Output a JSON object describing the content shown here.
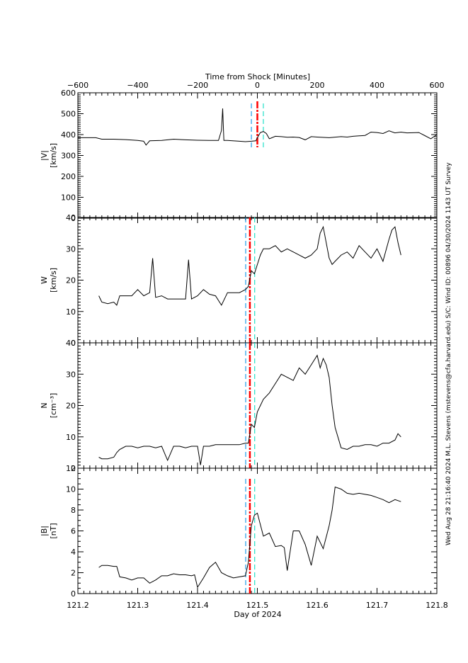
{
  "colors": {
    "background": "#ffffff",
    "axis": "#000000",
    "data_line": "#000000",
    "shock_line": "#ff0000",
    "upstream_line": "#1e9be8",
    "downstream_line": "#20e0c8"
  },
  "top_axis": {
    "title": "Time from Shock [Minutes]",
    "ticks": [
      "-600",
      "-400",
      "-200",
      "0",
      "200",
      "400",
      "600"
    ],
    "range": [
      -600,
      600
    ]
  },
  "bottom_axis": {
    "title": "Day of 2024",
    "ticks": [
      "121.2",
      "121.3",
      "121.4",
      "121.5",
      "121.6",
      "121.7",
      "121.8"
    ],
    "range": [
      121.2,
      121.8
    ]
  },
  "side_annotation": "Wed Aug 28 21:16:40 2024   M.L. Stevens (mstevens@cfa.harvard.edu)   S/C: Wind ID: 00896 04/30/2024   1143 UT Survey",
  "chart_data": [
    {
      "type": "line",
      "title": "|V|",
      "ylabel": "|V| [km/s]",
      "xlabel": "Time from Shock [Minutes]",
      "xlim": [
        -600,
        600
      ],
      "ylim": [
        0,
        600
      ],
      "yticks": [
        "0",
        "100",
        "200",
        "300",
        "400",
        "500",
        "600"
      ],
      "shock_marker_x": 0,
      "upstream_marker_x": -20,
      "downstream_marker_x": 20,
      "x": [
        -600,
        -540,
        -520,
        -480,
        -440,
        -400,
        -380,
        -372,
        -360,
        -320,
        -280,
        -240,
        -200,
        -160,
        -130,
        -120,
        -116,
        -112,
        -100,
        -60,
        -40,
        -20,
        -5,
        0,
        10,
        20,
        30,
        40,
        60,
        80,
        100,
        120,
        140,
        160,
        180,
        200,
        240,
        280,
        300,
        320,
        360,
        380,
        400,
        420,
        440,
        460,
        480,
        500,
        540,
        560,
        580,
        600
      ],
      "y": [
        385,
        385,
        378,
        378,
        376,
        372,
        368,
        350,
        370,
        372,
        378,
        375,
        373,
        372,
        372,
        420,
        525,
        372,
        372,
        368,
        366,
        368,
        370,
        385,
        410,
        415,
        405,
        380,
        392,
        390,
        387,
        388,
        386,
        375,
        390,
        388,
        385,
        390,
        388,
        392,
        396,
        412,
        410,
        405,
        418,
        408,
        412,
        408,
        410,
        395,
        380,
        400
      ]
    },
    {
      "type": "line",
      "title": "W",
      "ylabel": "W_i [km/s]",
      "xlabel": "Day of 2024",
      "xlim": [
        121.2,
        121.8
      ],
      "ylim": [
        0,
        40
      ],
      "yticks": [
        "0",
        "10",
        "20",
        "30",
        "40"
      ],
      "shock_marker_x": 121.4875,
      "upstream_marker_x": 121.4805,
      "downstream_marker_x": 121.4955,
      "x": [
        121.235,
        121.24,
        121.25,
        121.26,
        121.265,
        121.27,
        121.28,
        121.29,
        121.3,
        121.31,
        121.32,
        121.325,
        121.33,
        121.34,
        121.35,
        121.36,
        121.37,
        121.38,
        121.385,
        121.39,
        121.4,
        121.41,
        121.42,
        121.43,
        121.44,
        121.45,
        121.46,
        121.47,
        121.48,
        121.485,
        121.49,
        121.495,
        121.5,
        121.505,
        121.51,
        121.52,
        121.53,
        121.54,
        121.55,
        121.56,
        121.57,
        121.58,
        121.59,
        121.6,
        121.605,
        121.61,
        121.62,
        121.625,
        121.63,
        121.64,
        121.65,
        121.66,
        121.67,
        121.68,
        121.69,
        121.7,
        121.71,
        121.72,
        121.725,
        121.73,
        121.735,
        121.74
      ],
      "y": [
        15,
        13,
        12.5,
        13,
        12,
        15,
        15,
        15,
        17,
        15,
        16,
        27,
        14.5,
        15,
        14,
        14,
        14,
        14,
        26.5,
        14,
        15,
        17,
        15.5,
        15,
        12,
        16,
        16,
        16,
        17,
        18,
        23,
        22,
        25,
        28,
        30,
        30,
        31,
        29,
        30,
        29,
        28,
        27,
        28,
        30,
        35,
        37,
        27,
        25,
        26,
        28,
        29,
        27,
        31,
        29,
        27,
        30,
        26,
        33,
        36,
        37,
        32,
        28
      ]
    },
    {
      "type": "line",
      "title": "N_i",
      "ylabel": "N_i [cm^-3]",
      "xlabel": "Day of 2024",
      "xlim": [
        121.2,
        121.8
      ],
      "ylim": [
        0,
        40
      ],
      "yticks": [
        "0",
        "10",
        "20",
        "30",
        "40"
      ],
      "shock_marker_x": 121.4875,
      "upstream_marker_x": 121.4805,
      "downstream_marker_x": 121.4955,
      "x": [
        121.235,
        121.24,
        121.25,
        121.26,
        121.265,
        121.27,
        121.28,
        121.29,
        121.3,
        121.31,
        121.32,
        121.33,
        121.34,
        121.35,
        121.36,
        121.365,
        121.37,
        121.38,
        121.39,
        121.4,
        121.405,
        121.41,
        121.42,
        121.43,
        121.44,
        121.45,
        121.46,
        121.47,
        121.48,
        121.485,
        121.49,
        121.495,
        121.5,
        121.51,
        121.52,
        121.53,
        121.54,
        121.55,
        121.56,
        121.57,
        121.58,
        121.59,
        121.6,
        121.605,
        121.61,
        121.615,
        121.62,
        121.625,
        121.63,
        121.64,
        121.65,
        121.66,
        121.67,
        121.68,
        121.69,
        121.7,
        121.71,
        121.72,
        121.73,
        121.735,
        121.74
      ],
      "y": [
        3.5,
        3,
        3,
        3.5,
        5,
        6,
        7,
        7,
        6.5,
        7,
        7,
        6.5,
        7,
        2.5,
        7,
        7,
        7,
        6.5,
        7,
        7,
        1,
        7,
        7,
        7.5,
        7.5,
        7.5,
        7.5,
        7.5,
        8,
        8,
        14,
        13,
        18,
        22,
        24,
        27,
        30,
        29,
        28,
        32,
        30,
        33,
        36,
        32,
        35,
        33,
        29,
        20,
        13,
        6.5,
        6,
        7,
        7,
        7.5,
        7.5,
        7,
        8,
        8,
        9,
        11,
        10
      ]
    },
    {
      "type": "line",
      "title": "|B|",
      "ylabel": "|B| [nT]",
      "xlabel": "Day of 2024",
      "xlim": [
        121.2,
        121.8
      ],
      "ylim": [
        0,
        12
      ],
      "yticks": [
        "0",
        "2",
        "4",
        "6",
        "8",
        "10",
        "12"
      ],
      "shock_marker_x": 121.4875,
      "upstream_marker_x": 121.4805,
      "downstream_marker_x": 121.4955,
      "x": [
        121.235,
        121.24,
        121.25,
        121.26,
        121.265,
        121.27,
        121.28,
        121.29,
        121.3,
        121.31,
        121.32,
        121.33,
        121.34,
        121.35,
        121.36,
        121.37,
        121.38,
        121.39,
        121.395,
        121.4,
        121.41,
        121.42,
        121.43,
        121.44,
        121.45,
        121.46,
        121.47,
        121.48,
        121.485,
        121.49,
        121.495,
        121.5,
        121.51,
        121.52,
        121.53,
        121.54,
        121.545,
        121.55,
        121.56,
        121.57,
        121.58,
        121.59,
        121.6,
        121.61,
        121.62,
        121.625,
        121.63,
        121.64,
        121.65,
        121.66,
        121.67,
        121.68,
        121.69,
        121.7,
        121.71,
        121.72,
        121.73,
        121.74
      ],
      "y": [
        2.5,
        2.7,
        2.7,
        2.6,
        2.6,
        1.6,
        1.5,
        1.3,
        1.5,
        1.5,
        1.0,
        1.3,
        1.7,
        1.7,
        1.9,
        1.8,
        1.8,
        1.7,
        1.8,
        0.6,
        1.5,
        2.5,
        3.0,
        2.0,
        1.7,
        1.5,
        1.6,
        1.7,
        3.0,
        6.5,
        7.5,
        7.7,
        5.5,
        5.8,
        4.5,
        4.6,
        4.4,
        2.2,
        6.0,
        6.0,
        4.7,
        2.7,
        5.5,
        4.3,
        6.5,
        8.0,
        10.2,
        10.0,
        9.6,
        9.5,
        9.6,
        9.5,
        9.4,
        9.2,
        9.0,
        8.7,
        9.0,
        8.8
      ]
    }
  ]
}
